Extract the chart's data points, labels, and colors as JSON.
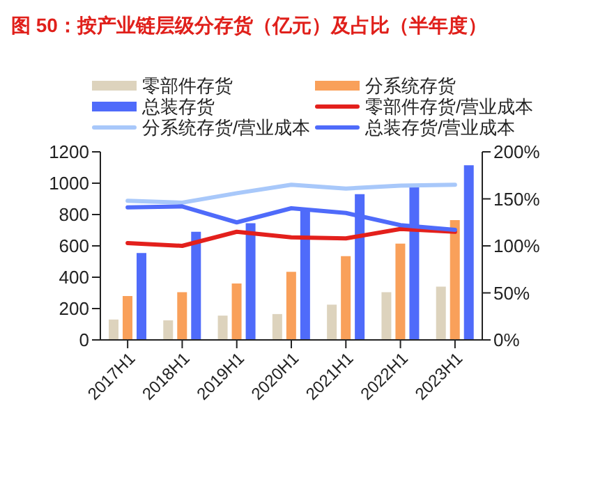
{
  "chart_data": {
    "type": "bar",
    "title": "图 50：按产业链层级分存货（亿元）及占比（半年度）",
    "categories": [
      "2017H1",
      "2018H1",
      "2019H1",
      "2020H1",
      "2021H1",
      "2022H1",
      "2023H1"
    ],
    "series": [
      {
        "name": "零部件存货",
        "color": "#ddd3bd",
        "values": [
          130,
          125,
          155,
          165,
          225,
          305,
          340
        ]
      },
      {
        "name": "分系统存货",
        "color": "#f9a05a",
        "values": [
          280,
          305,
          360,
          435,
          535,
          615,
          765
        ]
      },
      {
        "name": "总装存货",
        "color": "#4f6bfa",
        "values": [
          555,
          690,
          745,
          835,
          930,
          995,
          1115
        ]
      },
      {
        "name": "零部件存货/营业成本",
        "type": "line",
        "axis": "y2",
        "color": "#e3201c",
        "values": [
          103,
          100,
          115,
          109,
          108,
          118,
          115
        ]
      },
      {
        "name": "分系统存货/营业成本",
        "type": "line",
        "axis": "y2",
        "color": "#a8c8fa",
        "values": [
          148,
          146,
          156,
          165,
          161,
          164,
          165
        ]
      },
      {
        "name": "总装存货/营业成本",
        "type": "line",
        "axis": "y2",
        "color": "#4f6bfa",
        "values": [
          141,
          142,
          125,
          140,
          135,
          122,
          117
        ]
      }
    ],
    "ylim": [
      0,
      1200
    ],
    "yticks": [
      0,
      200,
      400,
      600,
      800,
      1000,
      1200
    ],
    "y2lim": [
      0,
      200
    ],
    "y2ticks": [
      {
        "value": 0,
        "label": "0%"
      },
      {
        "value": 50,
        "label": "50%"
      },
      {
        "value": 100,
        "label": "100%"
      },
      {
        "value": 150,
        "label": "150%"
      },
      {
        "value": 200,
        "label": "200%"
      }
    ],
    "legend": "top",
    "grid": false,
    "marker": "none",
    "line_style": "solid"
  }
}
